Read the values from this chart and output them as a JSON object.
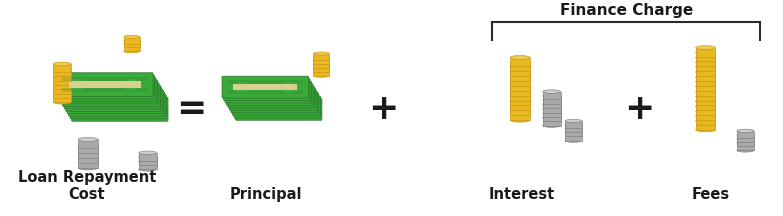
{
  "bg_color": "#ffffff",
  "title_finance_charge": "Finance Charge",
  "labels": [
    "Loan Repayment\nCost",
    "Principal",
    "Interest",
    "Fees"
  ],
  "operators": [
    "=",
    "+",
    "+"
  ],
  "label_fontsize": 10.5,
  "operator_fontsize": 26,
  "finance_charge_fontsize": 11,
  "label_bold": true,
  "operator_bold": true,
  "finance_charge_bold": true,
  "label_color": "#1a1a1a",
  "operator_color": "#1a1a1a",
  "bracket_color": "#2a2a2a",
  "money_green": "#3aaa3a",
  "money_dark_green": "#2a7a2a",
  "money_band": "#d8d090",
  "money_highlight": "#50cc50",
  "coin_gold": "#e8b820",
  "coin_gold_edge": "#c89010",
  "coin_gold_top": "#f0cc50",
  "coin_silver": "#aaaaaa",
  "coin_silver_edge": "#787878",
  "coin_silver_top": "#cccccc"
}
